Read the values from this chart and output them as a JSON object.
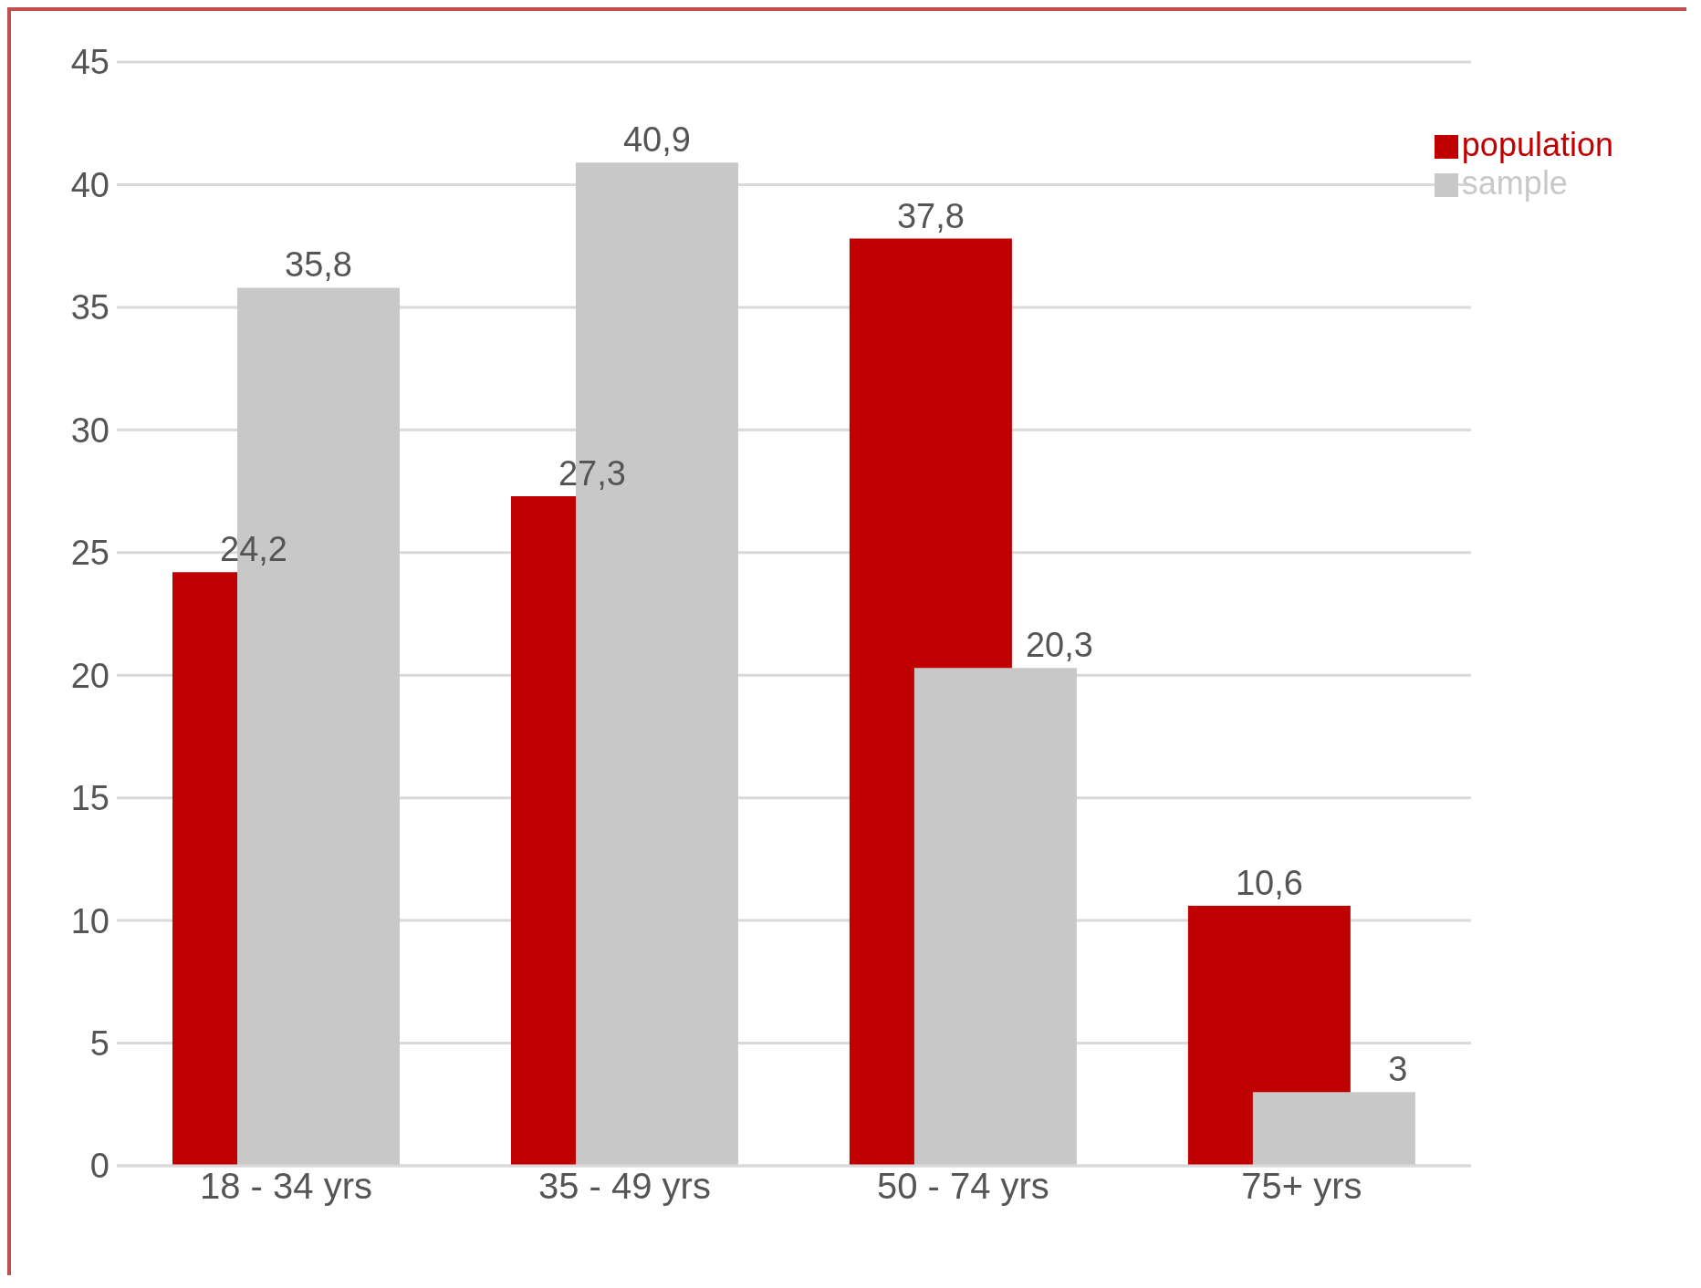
{
  "chart_data": {
    "type": "bar",
    "categories": [
      "18 - 34 yrs",
      "35 - 49 yrs",
      "50 - 74 yrs",
      "75+ yrs"
    ],
    "series": [
      {
        "name": "population",
        "color": "#c00000",
        "values": [
          24.2,
          27.3,
          37.8,
          10.6
        ],
        "value_labels": [
          "24,2",
          "27,3",
          "37,8",
          "10,6"
        ]
      },
      {
        "name": "sample",
        "color": "#c8c8c8",
        "values": [
          35.8,
          40.9,
          20.3,
          3
        ],
        "value_labels": [
          "35,8",
          "40,9",
          "20,3",
          "3"
        ]
      }
    ],
    "ylim": [
      0,
      45
    ],
    "yticks": [
      0,
      5,
      10,
      15,
      20,
      25,
      30,
      35,
      40,
      45
    ],
    "grid": "y",
    "legend": "top right"
  }
}
